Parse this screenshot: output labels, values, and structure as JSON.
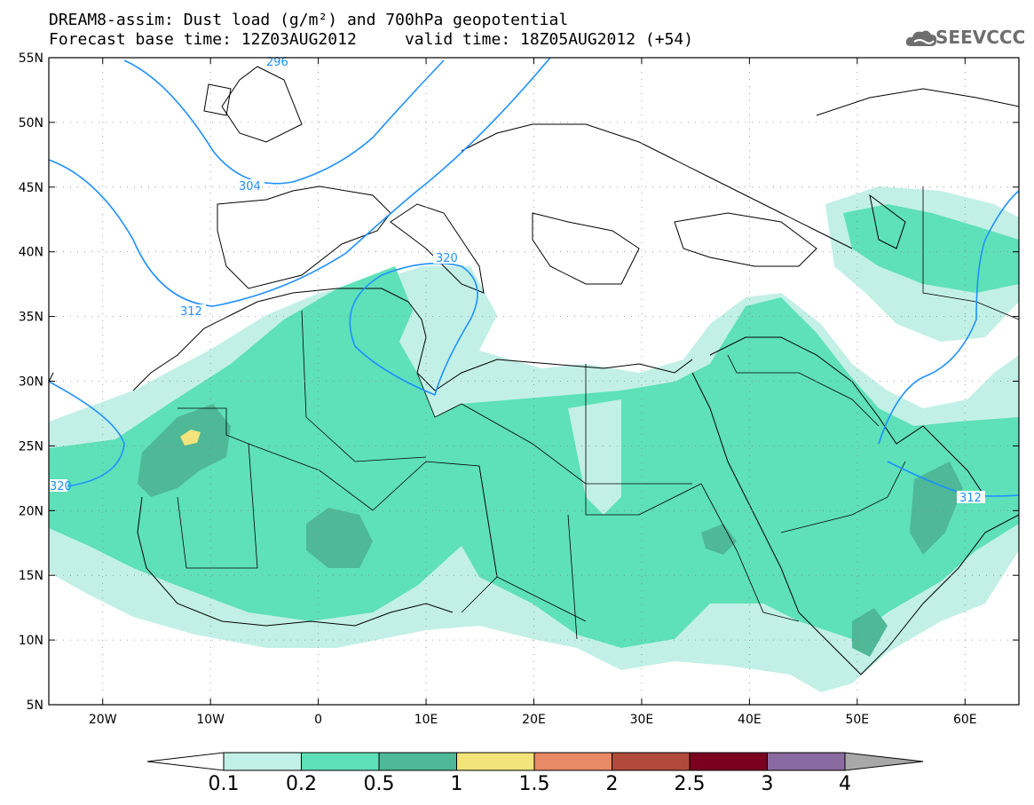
{
  "header": {
    "title_line1": "DREAM8-assim: Dust load (g/m²) and 700hPa geopotential",
    "title_line2": "Forecast base time: 12Z03AUG2012     valid time: 18Z05AUG2012 (+54)",
    "logo_text": "SEEVCCC"
  },
  "axes": {
    "lat_labels": [
      "55N",
      "50N",
      "45N",
      "40N",
      "35N",
      "30N",
      "25N",
      "20N",
      "15N",
      "10N",
      "5N"
    ],
    "lon_labels": [
      "20W",
      "10W",
      "0",
      "10E",
      "20E",
      "30E",
      "40E",
      "50E",
      "60E"
    ],
    "lat_range": [
      5,
      55
    ],
    "lon_range": [
      -25,
      65
    ]
  },
  "contours": {
    "labels": [
      "296",
      "304",
      "312",
      "320",
      "320",
      "312"
    ],
    "color": "#1e90ff"
  },
  "colorbar": {
    "ticks": [
      "0.1",
      "0.2",
      "0.5",
      "1",
      "1.5",
      "2",
      "2.5",
      "3",
      "4"
    ],
    "colors": [
      "#ffffff",
      "#c2f0e6",
      "#5ee0b8",
      "#4fb896",
      "#f2e37a",
      "#e88a65",
      "#b24a3c",
      "#7a0020",
      "#8a6aa0",
      "#a8a8a8"
    ]
  }
}
